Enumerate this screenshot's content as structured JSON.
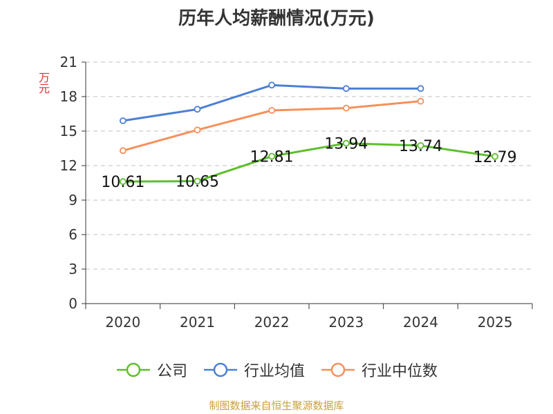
{
  "chart_data": {
    "type": "line",
    "title": "历年人均薪酬情况(万元)",
    "ylabel": "万元",
    "xlabel": "",
    "categories": [
      "2020",
      "2021",
      "2022",
      "2023",
      "2024",
      "2025"
    ],
    "ylim": [
      0,
      21
    ],
    "yticks": [
      0,
      3,
      6,
      9,
      12,
      15,
      18,
      21
    ],
    "grid": true,
    "legend_position": "bottom",
    "series": [
      {
        "name": "公司",
        "color": "#5dbe2a",
        "values": [
          10.61,
          10.65,
          12.81,
          13.94,
          13.74,
          12.79
        ],
        "show_labels": true
      },
      {
        "name": "行业均值",
        "color": "#4a7fd6",
        "values": [
          15.9,
          16.9,
          19.0,
          18.7,
          18.7,
          null
        ],
        "show_labels": false
      },
      {
        "name": "行业中位数",
        "color": "#f5905a",
        "values": [
          13.3,
          15.1,
          16.8,
          17.0,
          17.6,
          null
        ],
        "show_labels": false
      }
    ]
  },
  "footer": {
    "source": "制图数据来自恒生聚源数据库"
  }
}
